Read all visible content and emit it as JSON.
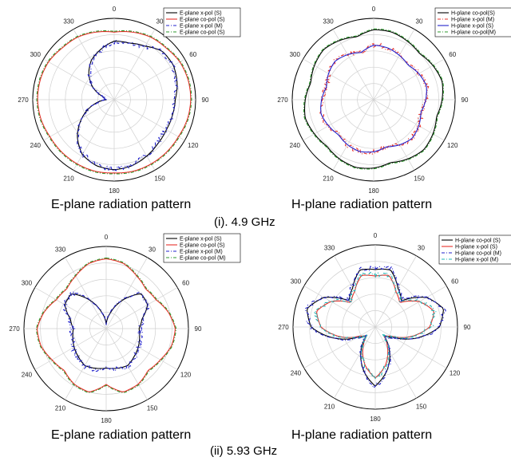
{
  "figure": {
    "captions": {
      "panel_1": "E-plane radiation pattern",
      "panel_2": "H-plane radiation pattern",
      "row_1": "(i). 4.9 GHz",
      "panel_3": "E-plane radiation pattern",
      "panel_4": "H-plane radiation pattern",
      "row_2": "(ii) 5.93 GHz"
    }
  },
  "chart_data": [
    {
      "type": "polar-line",
      "panel": "E-plane 4.9 GHz",
      "angle_ticks": [
        "0",
        "30",
        "60",
        "90",
        "120",
        "150",
        "180",
        "210",
        "240",
        "270",
        "300",
        "330"
      ],
      "radial_rings": 5,
      "radial_range": [
        0,
        1
      ],
      "grid": true,
      "legend_position": "top-right",
      "series": [
        {
          "name": "E-plane x-pol (S)",
          "color": "#000000",
          "dash": "solid",
          "values": [
            0.72,
            0.72,
            0.76,
            0.84,
            0.84,
            0.8,
            0.75,
            0.74,
            0.74,
            0.76,
            0.8,
            0.84,
            0.86,
            0.84,
            0.78,
            0.64,
            0.46,
            0.28,
            0.1,
            0.14,
            0.3,
            0.44,
            0.56,
            0.64,
            0.72
          ]
        },
        {
          "name": "E-plane co-pol (S)",
          "color": "#e8302a",
          "dash": "solid",
          "values": [
            0.83,
            0.86,
            0.89,
            0.9,
            0.93,
            0.94,
            0.94,
            0.93,
            0.91,
            0.91,
            0.91,
            0.91,
            0.9,
            0.91,
            0.91,
            0.91,
            0.91,
            0.93,
            0.94,
            0.94,
            0.93,
            0.9,
            0.89,
            0.86,
            0.83
          ]
        },
        {
          "name": "E-plane x-pol (M)",
          "color": "#2222cc",
          "dash": "dashdot",
          "noisy": true,
          "values": [
            0.71,
            0.71,
            0.75,
            0.83,
            0.83,
            0.79,
            0.74,
            0.73,
            0.73,
            0.75,
            0.79,
            0.83,
            0.85,
            0.83,
            0.77,
            0.63,
            0.45,
            0.27,
            0.1,
            0.14,
            0.29,
            0.43,
            0.55,
            0.63,
            0.71
          ]
        },
        {
          "name": "E-plane co-pol (S)",
          "color": "#2e9a2e",
          "dash": "dashdot",
          "values": [
            0.84,
            0.87,
            0.9,
            0.91,
            0.94,
            0.95,
            0.95,
            0.94,
            0.92,
            0.92,
            0.92,
            0.92,
            0.91,
            0.92,
            0.92,
            0.92,
            0.92,
            0.94,
            0.95,
            0.95,
            0.94,
            0.91,
            0.9,
            0.87,
            0.84
          ]
        }
      ]
    },
    {
      "type": "polar-line",
      "panel": "H-plane 4.9 GHz",
      "angle_ticks": [
        "0",
        "30",
        "60",
        "90",
        "120",
        "150",
        "180",
        "210",
        "240",
        "270",
        "300",
        "330"
      ],
      "radial_rings": 5,
      "radial_range": [
        0,
        1
      ],
      "grid": true,
      "legend_position": "top-right",
      "series": [
        {
          "name": "H-plane co-pol(S)",
          "color": "#000000",
          "dash": "solid",
          "values": [
            0.86,
            0.86,
            0.83,
            0.8,
            0.84,
            0.87,
            0.84,
            0.8,
            0.84,
            0.87,
            0.84,
            0.8,
            0.84,
            0.86,
            0.84,
            0.81,
            0.84,
            0.87,
            0.84,
            0.8,
            0.84,
            0.87,
            0.84,
            0.8,
            0.86
          ]
        },
        {
          "name": "H-plane x-pol (M)",
          "color": "#e8302a",
          "dash": "dashdot",
          "noisy": true,
          "values": [
            0.67,
            0.66,
            0.63,
            0.6,
            0.64,
            0.67,
            0.64,
            0.6,
            0.64,
            0.67,
            0.64,
            0.6,
            0.64,
            0.66,
            0.64,
            0.61,
            0.64,
            0.67,
            0.64,
            0.6,
            0.64,
            0.67,
            0.64,
            0.6,
            0.67
          ]
        },
        {
          "name": "H-plane x-pol (S)",
          "color": "#2222cc",
          "dash": "solid",
          "values": [
            0.67,
            0.66,
            0.63,
            0.6,
            0.64,
            0.67,
            0.64,
            0.6,
            0.64,
            0.67,
            0.64,
            0.6,
            0.64,
            0.66,
            0.64,
            0.61,
            0.64,
            0.67,
            0.64,
            0.6,
            0.64,
            0.67,
            0.64,
            0.6,
            0.67
          ]
        },
        {
          "name": "H-plane co-pol(M)",
          "color": "#2e9a2e",
          "dash": "dashdot",
          "values": [
            0.87,
            0.87,
            0.84,
            0.81,
            0.85,
            0.88,
            0.85,
            0.81,
            0.85,
            0.88,
            0.85,
            0.81,
            0.85,
            0.87,
            0.85,
            0.82,
            0.85,
            0.88,
            0.85,
            0.81,
            0.85,
            0.88,
            0.85,
            0.81,
            0.87
          ]
        }
      ]
    },
    {
      "type": "polar-line",
      "panel": "E-plane 5.93 GHz",
      "angle_ticks": [
        "0",
        "30",
        "60",
        "90",
        "120",
        "150",
        "180",
        "210",
        "240",
        "270",
        "300",
        "330"
      ],
      "radial_rings": 5,
      "radial_range": [
        0,
        1
      ],
      "grid": true,
      "legend_position": "top-right",
      "series": [
        {
          "name": "E-plane x-pol (S)",
          "color": "#000000",
          "dash": "solid",
          "values": [
            0.05,
            0.2,
            0.4,
            0.6,
            0.58,
            0.45,
            0.4,
            0.42,
            0.45,
            0.48,
            0.52,
            0.5,
            0.48,
            0.5,
            0.52,
            0.48,
            0.45,
            0.42,
            0.4,
            0.45,
            0.58,
            0.6,
            0.4,
            0.2,
            0.05
          ]
        },
        {
          "name": "E-plane co-pol (S)",
          "color": "#e8302a",
          "dash": "solid",
          "values": [
            0.85,
            0.82,
            0.74,
            0.68,
            0.7,
            0.78,
            0.84,
            0.82,
            0.76,
            0.72,
            0.78,
            0.8,
            0.68,
            0.8,
            0.78,
            0.72,
            0.76,
            0.82,
            0.84,
            0.78,
            0.7,
            0.68,
            0.74,
            0.82,
            0.85
          ]
        },
        {
          "name": "E-plane x-pol (M)",
          "color": "#2222cc",
          "dash": "dashdot",
          "noisy": true,
          "values": [
            0.06,
            0.21,
            0.41,
            0.61,
            0.59,
            0.46,
            0.41,
            0.43,
            0.46,
            0.49,
            0.53,
            0.51,
            0.49,
            0.51,
            0.53,
            0.49,
            0.46,
            0.43,
            0.41,
            0.46,
            0.59,
            0.61,
            0.41,
            0.21,
            0.06
          ]
        },
        {
          "name": "E-plane co-pol (M)",
          "color": "#2e9a2e",
          "dash": "dashdot",
          "values": [
            0.86,
            0.83,
            0.75,
            0.69,
            0.71,
            0.79,
            0.85,
            0.83,
            0.77,
            0.73,
            0.79,
            0.81,
            0.69,
            0.81,
            0.79,
            0.73,
            0.77,
            0.83,
            0.85,
            0.79,
            0.71,
            0.69,
            0.75,
            0.83,
            0.86
          ]
        }
      ]
    },
    {
      "type": "polar-line",
      "panel": "H-plane 5.93 GHz",
      "angle_ticks": [
        "0",
        "30",
        "60",
        "90",
        "120",
        "150",
        "180",
        "210",
        "240",
        "270",
        "300",
        "330"
      ],
      "radial_rings": 5,
      "radial_range": [
        0,
        1
      ],
      "grid": true,
      "legend_position": "top-right",
      "series": [
        {
          "name": "H-plane co-pol (S)",
          "color": "#000000",
          "dash": "solid",
          "values": [
            0.7,
            0.72,
            0.55,
            0.45,
            0.72,
            0.86,
            0.78,
            0.52,
            0.25,
            0.15,
            0.35,
            0.55,
            0.72,
            0.55,
            0.35,
            0.15,
            0.25,
            0.52,
            0.78,
            0.86,
            0.72,
            0.45,
            0.55,
            0.72,
            0.7
          ]
        },
        {
          "name": "H-plane x-pol (S)",
          "color": "#e8302a",
          "dash": "solid",
          "values": [
            0.62,
            0.65,
            0.5,
            0.42,
            0.62,
            0.74,
            0.66,
            0.45,
            0.22,
            0.14,
            0.3,
            0.48,
            0.62,
            0.48,
            0.3,
            0.14,
            0.22,
            0.45,
            0.66,
            0.74,
            0.62,
            0.42,
            0.5,
            0.65,
            0.62
          ]
        },
        {
          "name": "H-plane co-pol (M)",
          "color": "#2222cc",
          "dash": "dashdot",
          "noisy": true,
          "values": [
            0.71,
            0.73,
            0.56,
            0.46,
            0.73,
            0.87,
            0.79,
            0.53,
            0.26,
            0.16,
            0.36,
            0.56,
            0.73,
            0.56,
            0.36,
            0.16,
            0.26,
            0.53,
            0.79,
            0.87,
            0.73,
            0.46,
            0.56,
            0.73,
            0.71
          ]
        },
        {
          "name": "H-plane x-pol (M)",
          "color": "#22b5b5",
          "dash": "dashdot",
          "noisy": true,
          "values": [
            0.63,
            0.66,
            0.51,
            0.43,
            0.63,
            0.75,
            0.67,
            0.46,
            0.23,
            0.15,
            0.31,
            0.49,
            0.63,
            0.49,
            0.31,
            0.15,
            0.23,
            0.46,
            0.67,
            0.75,
            0.63,
            0.43,
            0.51,
            0.66,
            0.63
          ]
        }
      ]
    }
  ]
}
